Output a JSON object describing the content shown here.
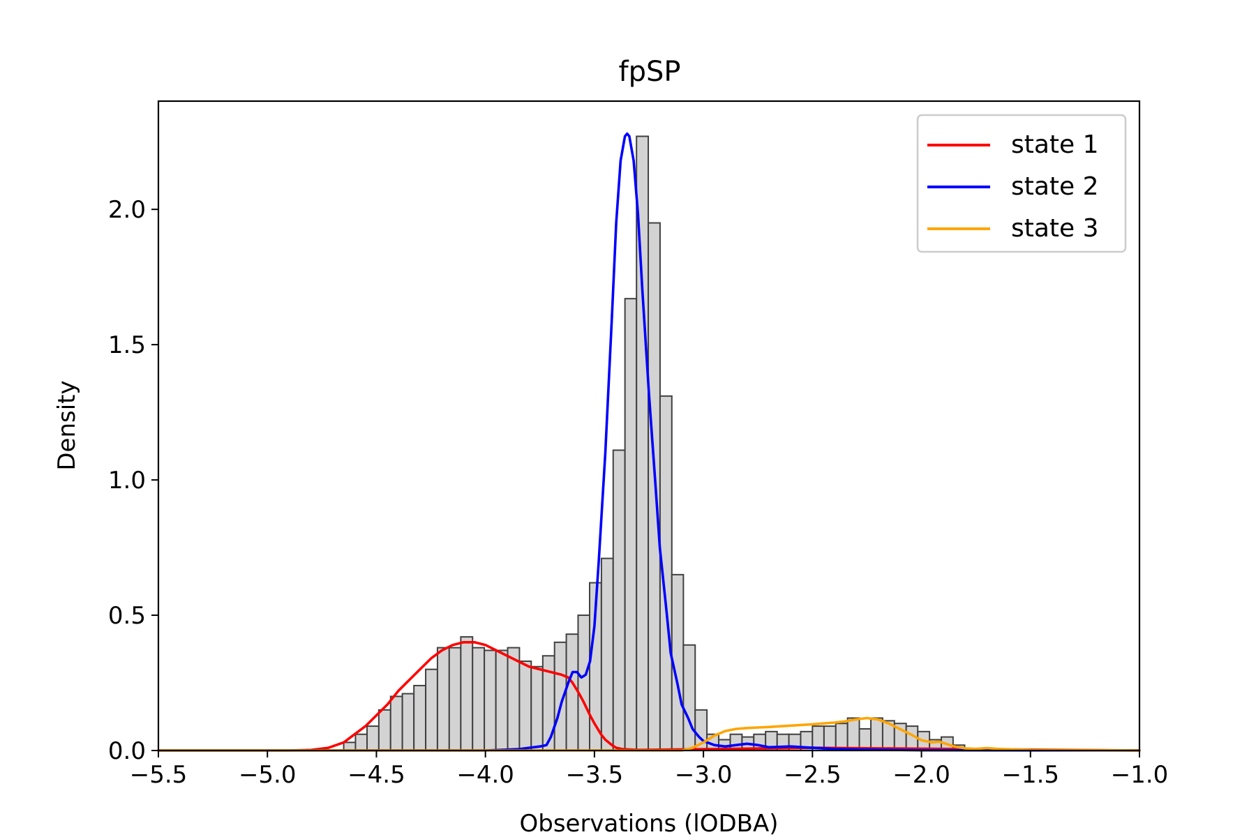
{
  "chart_data": {
    "type": "bar",
    "title": "fpSP",
    "xlabel": "Observations (lODBA)",
    "ylabel": "Density",
    "xlim": [
      -5.5,
      -1.0
    ],
    "ylim": [
      0,
      2.4
    ],
    "xticks": [
      -5.5,
      -5.0,
      -4.5,
      -4.0,
      -3.5,
      -3.0,
      -2.5,
      -2.0,
      -1.5,
      -1.0
    ],
    "xtick_labels": [
      "−5.5",
      "−5.0",
      "−4.5",
      "−4.0",
      "−3.5",
      "−3.0",
      "−2.5",
      "−2.0",
      "−1.5",
      "−1.0"
    ],
    "yticks": [
      0.0,
      0.5,
      1.0,
      1.5,
      2.0
    ],
    "ytick_labels": [
      "0.0",
      "0.5",
      "1.0",
      "1.5",
      "2.0"
    ],
    "grid": false,
    "legend_position": "top-right",
    "histogram": {
      "color": "#d3d3d3",
      "edgecolor": "#404040",
      "bin_edges": [
        -4.65,
        -4.596,
        -4.543,
        -4.489,
        -4.435,
        -4.381,
        -4.328,
        -4.274,
        -4.22,
        -4.166,
        -4.113,
        -4.059,
        -4.005,
        -3.952,
        -3.898,
        -3.844,
        -3.79,
        -3.737,
        -3.683,
        -3.629,
        -3.575,
        -3.522,
        -3.468,
        -3.414,
        -3.36,
        -3.307,
        -3.253,
        -3.199,
        -3.145,
        -3.092,
        -3.038,
        -2.984,
        -2.93,
        -2.877,
        -2.823,
        -2.769,
        -2.715,
        -2.662,
        -2.608,
        -2.554,
        -2.5,
        -2.447,
        -2.393,
        -2.339,
        -2.285,
        -2.232,
        -2.178,
        -2.124,
        -2.07,
        -2.017,
        -1.963,
        -1.909,
        -1.855,
        -1.802
      ],
      "values": [
        0.03,
        0.06,
        0.09,
        0.15,
        0.2,
        0.21,
        0.24,
        0.3,
        0.38,
        0.38,
        0.42,
        0.38,
        0.37,
        0.37,
        0.38,
        0.33,
        0.31,
        0.35,
        0.4,
        0.43,
        0.5,
        0.62,
        0.71,
        1.11,
        1.67,
        2.27,
        1.95,
        1.31,
        0.65,
        0.39,
        0.15,
        0.06,
        0.04,
        0.06,
        0.05,
        0.06,
        0.07,
        0.06,
        0.06,
        0.07,
        0.09,
        0.09,
        0.1,
        0.12,
        0.08,
        0.12,
        0.11,
        0.1,
        0.09,
        0.07,
        0.04,
        0.05,
        0.02
      ]
    },
    "series": [
      {
        "name": "state 1",
        "color": "#ff0000",
        "x": [
          -5.5,
          -4.9,
          -4.8,
          -4.72,
          -4.65,
          -4.6,
          -4.55,
          -4.5,
          -4.45,
          -4.4,
          -4.35,
          -4.3,
          -4.25,
          -4.2,
          -4.15,
          -4.1,
          -4.05,
          -4.0,
          -3.95,
          -3.9,
          -3.85,
          -3.8,
          -3.75,
          -3.7,
          -3.65,
          -3.62,
          -3.6,
          -3.57,
          -3.55,
          -3.52,
          -3.5,
          -3.47,
          -3.45,
          -3.42,
          -3.4,
          -3.37,
          -3.3,
          -3.2,
          -3.0,
          -2.5,
          -1.0
        ],
        "y": [
          0.0,
          0.0,
          0.002,
          0.01,
          0.03,
          0.06,
          0.09,
          0.13,
          0.17,
          0.22,
          0.26,
          0.3,
          0.34,
          0.37,
          0.39,
          0.4,
          0.4,
          0.39,
          0.37,
          0.35,
          0.33,
          0.31,
          0.3,
          0.29,
          0.28,
          0.27,
          0.25,
          0.21,
          0.18,
          0.13,
          0.1,
          0.06,
          0.04,
          0.02,
          0.01,
          0.005,
          0.002,
          0.003,
          0.005,
          0.01,
          0.0
        ]
      },
      {
        "name": "state 2",
        "color": "#0000ff",
        "x": [
          -5.5,
          -4.0,
          -3.85,
          -3.8,
          -3.75,
          -3.72,
          -3.7,
          -3.67,
          -3.65,
          -3.62,
          -3.6,
          -3.58,
          -3.56,
          -3.54,
          -3.52,
          -3.5,
          -3.48,
          -3.45,
          -3.42,
          -3.4,
          -3.38,
          -3.36,
          -3.35,
          -3.34,
          -3.32,
          -3.3,
          -3.28,
          -3.25,
          -3.22,
          -3.2,
          -3.17,
          -3.15,
          -3.12,
          -3.1,
          -3.07,
          -3.05,
          -3.02,
          -3.0,
          -2.95,
          -2.9,
          -2.85,
          -2.8,
          -2.75,
          -2.7,
          -2.6,
          -2.5,
          -2.4,
          -2.3,
          -2.0,
          -1.0
        ],
        "y": [
          0.0,
          0.0,
          0.005,
          0.01,
          0.015,
          0.02,
          0.05,
          0.12,
          0.18,
          0.25,
          0.29,
          0.29,
          0.27,
          0.28,
          0.33,
          0.46,
          0.7,
          1.1,
          1.6,
          1.95,
          2.18,
          2.27,
          2.28,
          2.27,
          2.18,
          1.98,
          1.7,
          1.32,
          0.98,
          0.75,
          0.52,
          0.36,
          0.25,
          0.17,
          0.12,
          0.08,
          0.05,
          0.035,
          0.02,
          0.015,
          0.02,
          0.025,
          0.02,
          0.012,
          0.015,
          0.01,
          0.006,
          0.004,
          0.001,
          0.0
        ]
      },
      {
        "name": "state 3",
        "color": "#ffa500",
        "x": [
          -5.5,
          -3.1,
          -3.05,
          -3.0,
          -2.95,
          -2.9,
          -2.85,
          -2.8,
          -2.75,
          -2.7,
          -2.6,
          -2.5,
          -2.45,
          -2.4,
          -2.35,
          -2.3,
          -2.25,
          -2.2,
          -2.15,
          -2.1,
          -2.05,
          -2.0,
          -1.95,
          -1.92,
          -1.9,
          -1.85,
          -1.8,
          -1.75,
          -1.7,
          -1.65,
          -1.5,
          -1.0
        ],
        "y": [
          0.0,
          0.0,
          0.01,
          0.03,
          0.055,
          0.072,
          0.08,
          0.083,
          0.085,
          0.087,
          0.092,
          0.097,
          0.1,
          0.103,
          0.108,
          0.115,
          0.12,
          0.115,
          0.1,
          0.08,
          0.06,
          0.038,
          0.03,
          0.033,
          0.028,
          0.015,
          0.008,
          0.006,
          0.009,
          0.006,
          0.002,
          0.0
        ]
      }
    ]
  }
}
